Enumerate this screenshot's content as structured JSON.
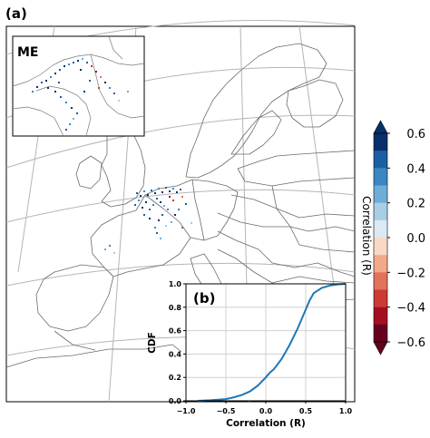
{
  "panel_a": {
    "label": "(a)"
  },
  "inset": {
    "label": "ME"
  },
  "colorbar": {
    "label": "Correlation (R)",
    "ticks": [
      "0.6",
      "0.4",
      "0.2",
      "0.0",
      "−0.2",
      "−0.4",
      "−0.6"
    ],
    "tick_values": [
      0.6,
      0.4,
      0.2,
      0.0,
      -0.2,
      -0.4,
      -0.6
    ],
    "range": [
      -0.6,
      0.6
    ],
    "colors_top_to_bottom": [
      "#08306b",
      "#1b5fa3",
      "#3a87c2",
      "#6eaed6",
      "#a8cde4",
      "#dbe9f4",
      "#f8d9c6",
      "#f2a989",
      "#e3725a",
      "#cc3a35",
      "#a30f21",
      "#67001f"
    ]
  },
  "chart_data": {
    "type": "line",
    "label": "(b)",
    "xlabel": "Correlation (R)",
    "ylabel": "CDF",
    "xlim": [
      -1.0,
      1.0
    ],
    "ylim": [
      0.0,
      1.0
    ],
    "xticks": [
      "−1.0",
      "−0.5",
      "0.0",
      "0.5",
      "1.0"
    ],
    "xtick_values": [
      -1.0,
      -0.5,
      0.0,
      0.5,
      1.0
    ],
    "yticks": [
      "0.0",
      "0.2",
      "0.4",
      "0.6",
      "0.8",
      "1.0"
    ],
    "ytick_values": [
      0.0,
      0.2,
      0.4,
      0.6,
      0.8,
      1.0
    ],
    "grid": true,
    "line_color": "#1f77b4",
    "series": [
      {
        "x": [
          -0.85,
          -0.7,
          -0.5,
          -0.4,
          -0.3,
          -0.2,
          -0.1,
          0.0,
          0.05,
          0.1,
          0.2,
          0.3,
          0.4,
          0.5,
          0.55,
          0.6,
          0.7,
          0.8,
          0.9,
          1.0
        ],
        "y": [
          0.0,
          0.005,
          0.015,
          0.03,
          0.05,
          0.08,
          0.13,
          0.2,
          0.24,
          0.27,
          0.36,
          0.48,
          0.62,
          0.78,
          0.86,
          0.92,
          0.965,
          0.985,
          0.995,
          1.0
        ]
      }
    ]
  }
}
